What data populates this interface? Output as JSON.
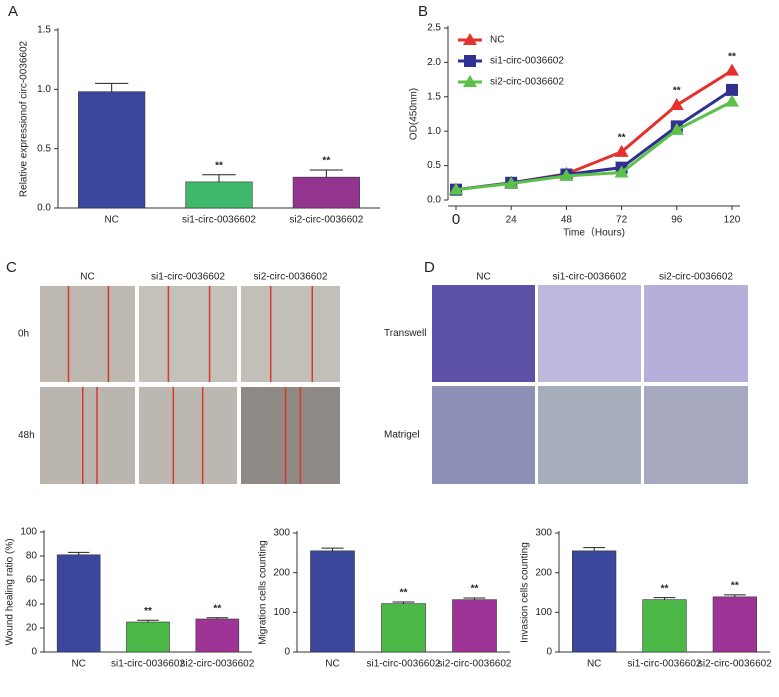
{
  "chart_data": [
    {
      "type": "bar",
      "label": "A",
      "ylabel": "Relative expressionof circ-0036602",
      "categories": [
        "NC",
        "si1-circ-0036602",
        "si2-circ-0036602"
      ],
      "values": [
        0.98,
        0.22,
        0.26
      ],
      "errors": [
        0.07,
        0.06,
        0.06
      ],
      "colors": [
        "#3b479c",
        "#3fb86c",
        "#93358f"
      ],
      "annotations": [
        null,
        "**",
        "**"
      ],
      "ylim": [
        0,
        1.5
      ],
      "yticks": [
        {
          "value": 0,
          "label": "0.0"
        },
        0.5,
        {
          "value": 1,
          "label": "1.0"
        },
        1.5
      ]
    },
    {
      "type": "line",
      "label": "B",
      "ylabel": "OD(450nm)",
      "xlabel": "Time（Hours)",
      "x": [
        0,
        24,
        48,
        72,
        96,
        120
      ],
      "series": [
        {
          "name": "NC",
          "color": "#e5312d",
          "marker": "triangle",
          "values": [
            0.15,
            0.25,
            0.38,
            0.7,
            1.38,
            1.88
          ]
        },
        {
          "name": "si1-circ-0036602",
          "color": "#2e3192",
          "marker": "square",
          "values": [
            0.15,
            0.25,
            0.37,
            0.47,
            1.07,
            1.6
          ]
        },
        {
          "name": "si2-circ-0036602",
          "color": "#5cc04a",
          "marker": "triangle",
          "values": [
            0.15,
            0.24,
            0.35,
            0.4,
            1.02,
            1.43
          ]
        }
      ],
      "annotations": [
        null,
        null,
        null,
        "**",
        "**",
        "**"
      ],
      "xlim": [
        0,
        120
      ],
      "xticks": [
        0,
        24,
        48,
        72,
        96,
        120
      ],
      "ylim": [
        0,
        2.5
      ],
      "yticks": [
        {
          "value": 0,
          "label": "0.0"
        },
        0.5,
        {
          "value": 1,
          "label": "1.0"
        },
        1.5,
        {
          "value": 2,
          "label": "2.0"
        },
        2.5
      ],
      "legend": "top-left"
    },
    {
      "type": "bar",
      "ylabel": "Wound healing ratio (%)",
      "categories": [
        "NC",
        "si1-circ-0036602",
        "si2-circ-0036602"
      ],
      "values": [
        81,
        25,
        27.5
      ],
      "errors": [
        2,
        1.5,
        1
      ],
      "colors": [
        "#3b479c",
        "#4cb848",
        "#9e3596"
      ],
      "annotations": [
        null,
        "**",
        "**"
      ],
      "ylim": [
        0,
        100
      ],
      "yticks": [
        0,
        20,
        40,
        60,
        80,
        100
      ]
    },
    {
      "type": "bar",
      "ylabel": "Migration cells counting",
      "categories": [
        "NC",
        "si1-circ-0036602",
        "si2-circ-0036602"
      ],
      "values": [
        255,
        122,
        132
      ],
      "errors": [
        7,
        4,
        4
      ],
      "colors": [
        "#3b479c",
        "#4cb848",
        "#9e3596"
      ],
      "annotations": [
        null,
        "**",
        "**"
      ],
      "ylim": [
        0,
        300
      ],
      "yticks": [
        0,
        100,
        200,
        300
      ]
    },
    {
      "type": "bar",
      "ylabel": "Invasion cells counting",
      "categories": [
        "NC",
        "si1-circ-0036602",
        "si2-circ-0036602"
      ],
      "values": [
        255,
        132,
        139
      ],
      "errors": [
        8,
        5,
        5
      ],
      "colors": [
        "#3b479c",
        "#4cb848",
        "#9e3596"
      ],
      "annotations": [
        null,
        "**",
        "**"
      ],
      "ylim": [
        0,
        300
      ],
      "yticks": [
        0,
        100,
        200,
        300
      ]
    }
  ],
  "image_panels": [
    {
      "label": "C",
      "columns": [
        "NC",
        "si1-circ-0036602",
        "si2-circ-0036602"
      ],
      "rows": [
        "0h",
        "48h"
      ]
    },
    {
      "label": "D",
      "columns": [
        "NC",
        "si1-circ-0036602",
        "si2-circ-0036602"
      ],
      "rows": [
        "Transwell",
        "Matrigel"
      ]
    }
  ]
}
